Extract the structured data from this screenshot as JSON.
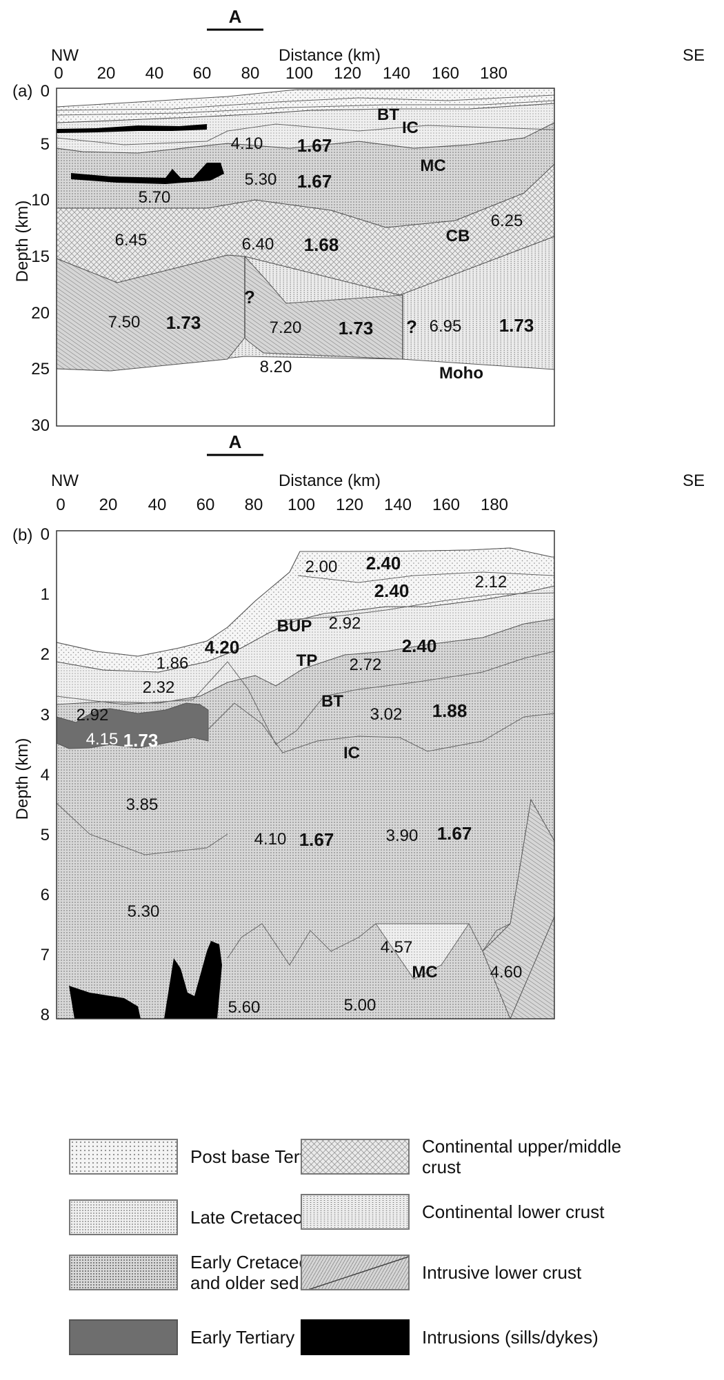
{
  "panel_a": {
    "panel_label": "(a)",
    "section_marker": "A",
    "x_axis_title": "Distance (km)",
    "y_axis_title": "Depth (km)",
    "nw_label": "NW",
    "se_label": "SE",
    "x_ticks": [
      "0",
      "20",
      "40",
      "60",
      "80",
      "100",
      "120",
      "140",
      "160",
      "180"
    ],
    "y_ticks": [
      "0",
      "5",
      "10",
      "15",
      "20",
      "25",
      "30"
    ],
    "labels": {
      "bt": "BT",
      "ic": "IC",
      "mc": "MC",
      "cb": "CB",
      "moho": "Moho",
      "q1": "?",
      "q2": "?",
      "v410": "4.10",
      "d167a": "1.67",
      "v530": "5.30",
      "d167b": "1.67",
      "v570": "5.70",
      "v645": "6.45",
      "v640": "6.40",
      "d168": "1.68",
      "v625": "6.25",
      "v750": "7.50",
      "d173a": "1.73",
      "v720": "7.20",
      "d173b": "1.73",
      "v695": "6.95",
      "d173c": "1.73",
      "v820": "8.20"
    }
  },
  "panel_b": {
    "panel_label": "(b)",
    "section_marker": "A",
    "x_axis_title": "Distance (km)",
    "y_axis_title": "Depth (km)",
    "nw_label": "NW",
    "se_label": "SE",
    "x_ticks": [
      "0",
      "20",
      "40",
      "60",
      "80",
      "100",
      "120",
      "140",
      "160",
      "180"
    ],
    "y_ticks": [
      "0",
      "1",
      "2",
      "3",
      "4",
      "5",
      "6",
      "7",
      "8"
    ],
    "labels": {
      "v200": "2.00",
      "d240a": "2.40",
      "v212": "2.12",
      "d240b": "2.40",
      "bup": "BUP",
      "v292a": "2.92",
      "d420": "4.20",
      "v186": "1.86",
      "tp": "TP",
      "v272": "2.72",
      "d240c": "2.40",
      "v232": "2.32",
      "bt": "BT",
      "v292b": "2.92",
      "v302": "3.02",
      "d188": "1.88",
      "v415": "4.15",
      "d173": "1.73",
      "ic": "IC",
      "v385": "3.85",
      "v410": "4.10",
      "d167a": "1.67",
      "v390": "3.90",
      "d167b": "1.67",
      "v530": "5.30",
      "v457": "4.57",
      "mc": "MC",
      "v460": "4.60",
      "v560": "5.60",
      "v500": "5.00"
    }
  },
  "legend": {
    "items": [
      {
        "label": "Post base Tertiary sed."
      },
      {
        "label": "Late Cretaceous sed."
      },
      {
        "label": "Early Cretaceous\nand older sed."
      },
      {
        "label": "Early Tertiary basalts"
      },
      {
        "label": "Continental upper/middle\ncrust"
      },
      {
        "label": "Continental lower crust"
      },
      {
        "label": "Intrusive lower crust"
      },
      {
        "label": "Intrusions (sills/dykes)"
      }
    ]
  },
  "colors": {
    "basalt": "#6e6e6e",
    "intrusion": "#000000",
    "early_sed": "#d9d9d9",
    "lower_crust": "#e6e6e6"
  }
}
